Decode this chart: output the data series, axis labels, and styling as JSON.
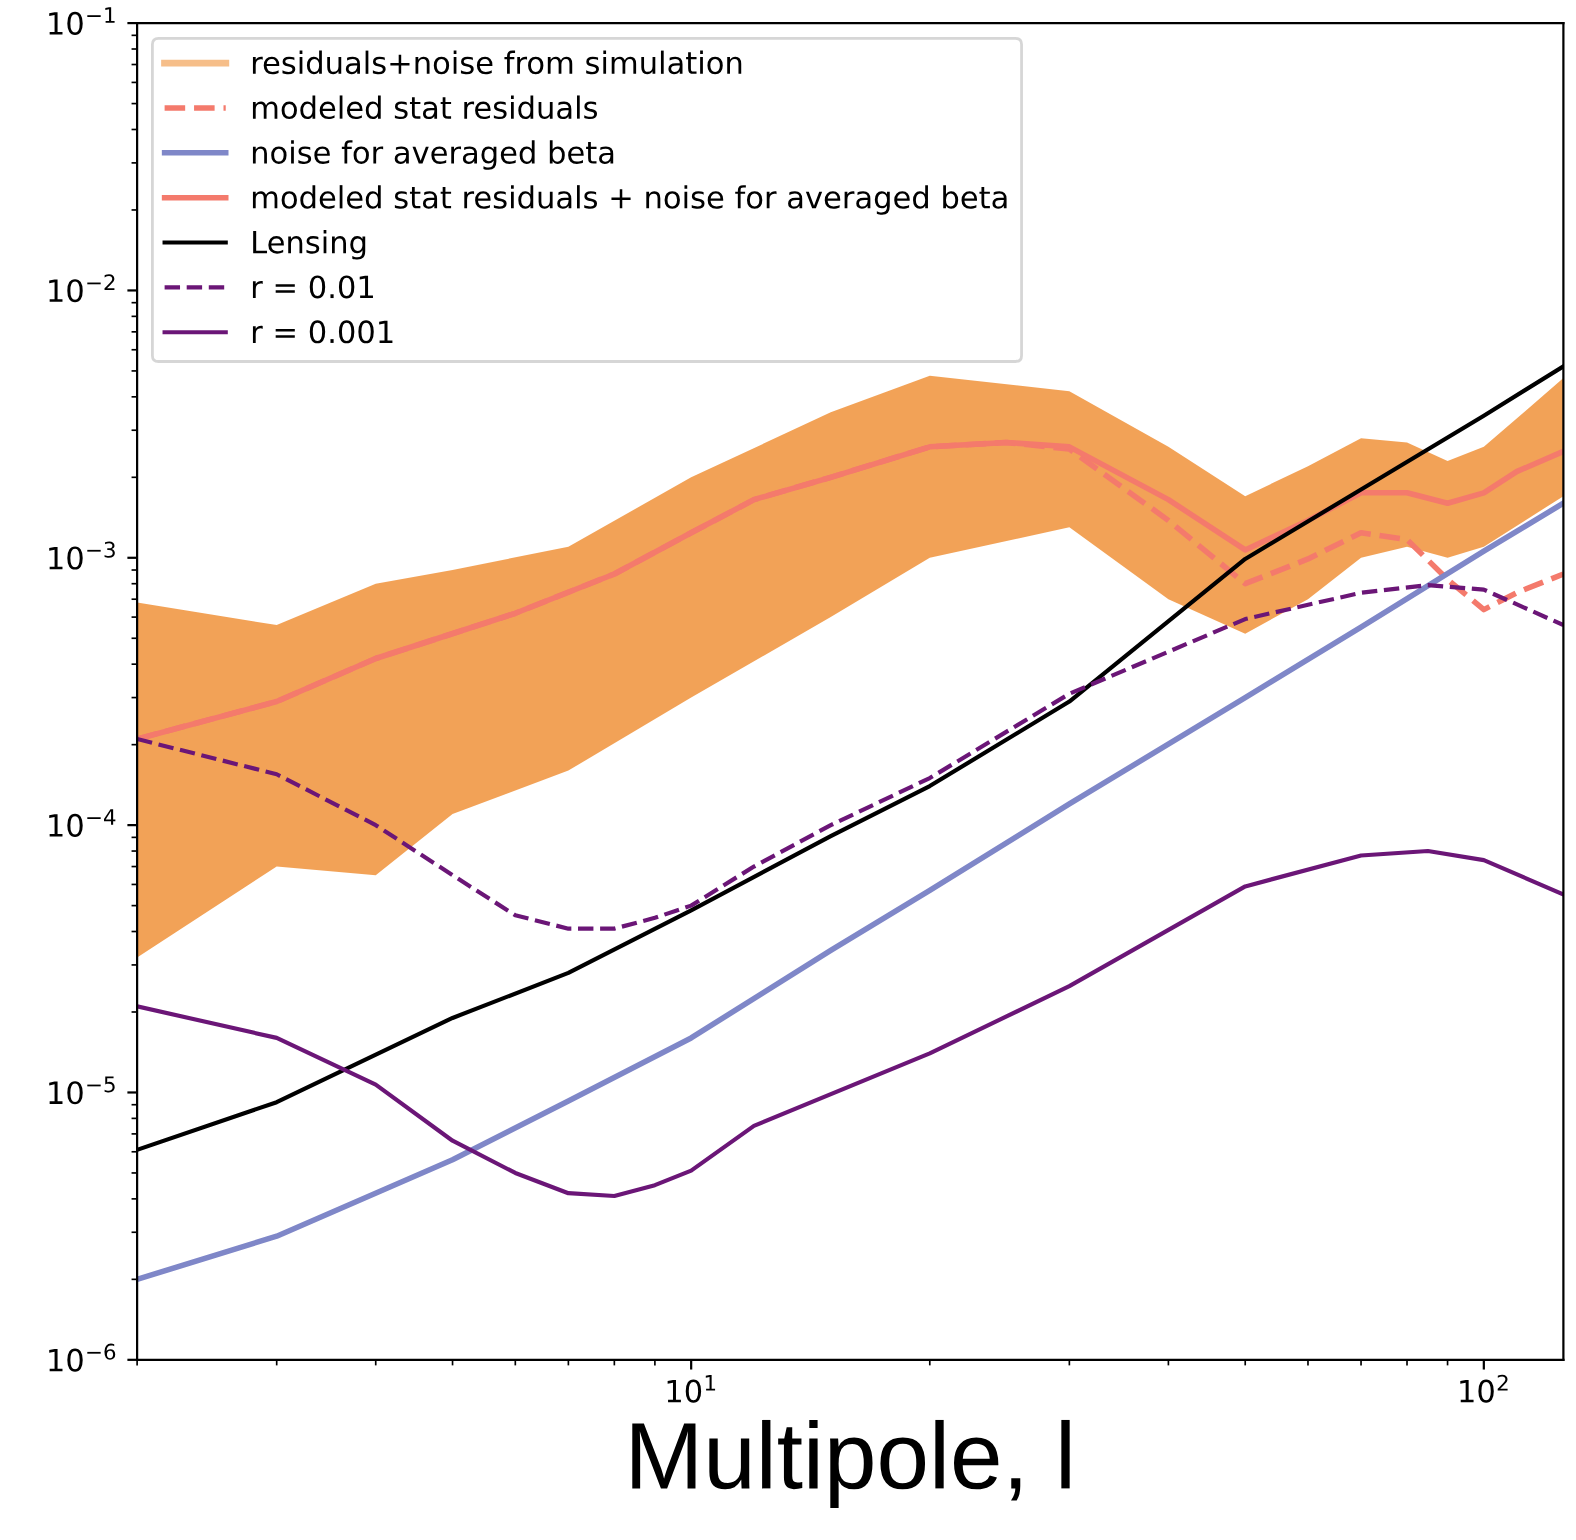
{
  "chart_data": {
    "type": "line",
    "xlabel": "Multipole, l",
    "log": "xy",
    "legend": "top left",
    "grid": false,
    "xlim": [
      2,
      126
    ],
    "ylim": [
      1e-06,
      0.1
    ],
    "xticks": [
      {
        "value": 10,
        "label": "10$^{1}$"
      },
      {
        "value": 100,
        "label": "10$^{2}$"
      }
    ],
    "yticks": [
      {
        "value": 1e-06,
        "label": "10$^{−6}$"
      },
      {
        "value": 1e-05,
        "label": "10$^{−5}$"
      },
      {
        "value": 0.0001,
        "label": "10$^{−4}$"
      },
      {
        "value": 0.001,
        "label": "10$^{−3}$"
      },
      {
        "value": 0.01,
        "label": "10$^{−2}$"
      },
      {
        "value": 0.1,
        "label": "10$^{−1}$"
      }
    ],
    "series": [
      {
        "name": "residuals+noise from simulation",
        "type": "area",
        "color": "#f0923a",
        "values": [
          null,
          null,
          null,
          null,
          null,
          null,
          null,
          null,
          null,
          null,
          null,
          null,
          null,
          null,
          null,
          null,
          null
        ],
        "x": [
          2,
          3,
          4,
          5,
          7,
          10,
          15,
          20,
          30,
          40,
          50,
          60,
          70,
          80,
          90,
          100,
          126
        ],
        "lower": [
          3.2e-05,
          7e-05,
          6.5e-05,
          0.00011,
          0.00016,
          0.0003,
          0.0006,
          0.001,
          0.0013,
          0.0007,
          0.00052,
          0.0007,
          0.001,
          0.0011,
          0.001,
          0.0011,
          0.0017
        ],
        "upper": [
          0.00068,
          0.00056,
          0.0008,
          0.0009,
          0.0011,
          0.002,
          0.0035,
          0.0048,
          0.0042,
          0.0026,
          0.0017,
          0.0022,
          0.0028,
          0.0027,
          0.0023,
          0.0026,
          0.0047
        ]
      },
      {
        "name": "modeled stat residuals",
        "color": "#f47a6c",
        "line_style": "dashed",
        "x": [
          2,
          3,
          4,
          6,
          8,
          10,
          12,
          15,
          20,
          25,
          30,
          40,
          50,
          60,
          70,
          80,
          90,
          100,
          110,
          126
        ],
        "values": [
          0.00021,
          0.00029,
          0.00042,
          0.00062,
          0.00087,
          0.00124,
          0.00165,
          0.002,
          0.0026,
          0.0027,
          0.00255,
          0.00138,
          0.0008,
          0.00099,
          0.00124,
          0.00117,
          0.00083,
          0.00064,
          0.00074,
          0.00087
        ]
      },
      {
        "name": "noise for averaged beta",
        "color": "#7f87c8",
        "x": [
          2,
          3,
          5,
          7,
          10,
          15,
          20,
          30,
          50,
          70,
          100,
          126
        ],
        "values": [
          2e-06,
          2.9e-06,
          5.6e-06,
          9.3e-06,
          1.6e-05,
          3.4e-05,
          5.7e-05,
          0.00012,
          0.0003,
          0.00055,
          0.00106,
          0.0016
        ]
      },
      {
        "name": "modeled stat residuals + noise for averaged beta",
        "color": "#f47a6c",
        "x": [
          2,
          3,
          4,
          6,
          8,
          10,
          12,
          15,
          20,
          25,
          30,
          40,
          50,
          60,
          70,
          80,
          90,
          100,
          110,
          126
        ],
        "values": [
          0.00021,
          0.00029,
          0.00042,
          0.00062,
          0.00087,
          0.00124,
          0.00165,
          0.002,
          0.0026,
          0.0027,
          0.0026,
          0.00165,
          0.00107,
          0.00138,
          0.00175,
          0.00175,
          0.0016,
          0.00175,
          0.0021,
          0.0025
        ]
      },
      {
        "name": "Lensing",
        "color": "#000000",
        "x": [
          2,
          3,
          5,
          7,
          10,
          15,
          20,
          30,
          50,
          70,
          100,
          126
        ],
        "values": [
          6.1e-06,
          9.2e-06,
          1.9e-05,
          2.8e-05,
          4.8e-05,
          9.1e-05,
          0.00014,
          0.00029,
          0.00099,
          0.0018,
          0.0034,
          0.0052
        ]
      },
      {
        "name": "r = 0.01",
        "color": "#6b1677",
        "line_style": "dashed",
        "x": [
          2,
          3,
          4,
          5,
          6,
          7,
          8,
          9,
          10,
          12,
          15,
          20,
          30,
          50,
          70,
          85,
          100,
          126
        ],
        "values": [
          0.00021,
          0.000155,
          0.0001,
          6.5e-05,
          4.6e-05,
          4.1e-05,
          4.1e-05,
          4.5e-05,
          5e-05,
          7e-05,
          0.0001,
          0.00015,
          0.00031,
          0.00059,
          0.00074,
          0.00079,
          0.00076,
          0.00056
        ]
      },
      {
        "name": "r = 0.001",
        "color": "#6b1677",
        "x": [
          2,
          3,
          4,
          5,
          6,
          7,
          8,
          9,
          10,
          12,
          20,
          30,
          50,
          70,
          85,
          100,
          126
        ],
        "values": [
          2.1e-05,
          1.6e-05,
          1.07e-05,
          6.6e-06,
          5e-06,
          4.2e-06,
          4.1e-06,
          4.5e-06,
          5.1e-06,
          7.5e-06,
          1.4e-05,
          2.5e-05,
          5.9e-05,
          7.7e-05,
          8e-05,
          7.4e-05,
          5.5e-05
        ]
      }
    ]
  }
}
